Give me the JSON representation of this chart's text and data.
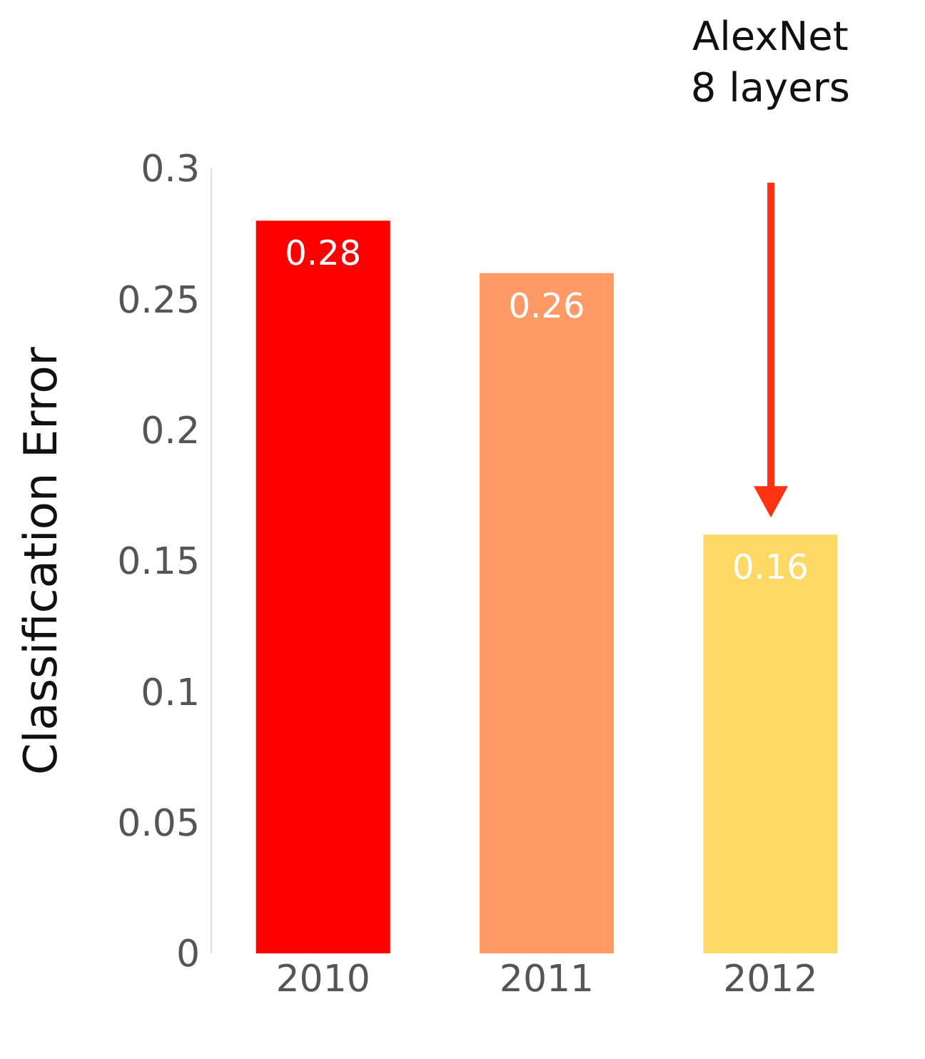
{
  "chart_data": {
    "type": "bar",
    "ylabel": "Classification Error",
    "categories": [
      "2010",
      "2011",
      "2012"
    ],
    "values": [
      0.28,
      0.26,
      0.16
    ],
    "colors": [
      "#ff0000",
      "#ff9966",
      "#ffd966"
    ],
    "ylim": [
      0,
      0.3
    ],
    "yticks": [
      0,
      0.05,
      0.1,
      0.15,
      0.2,
      0.25,
      0.3
    ],
    "grid": false,
    "data_labels": true,
    "annotations": [
      "AlexNet\n8 layers"
    ]
  }
}
